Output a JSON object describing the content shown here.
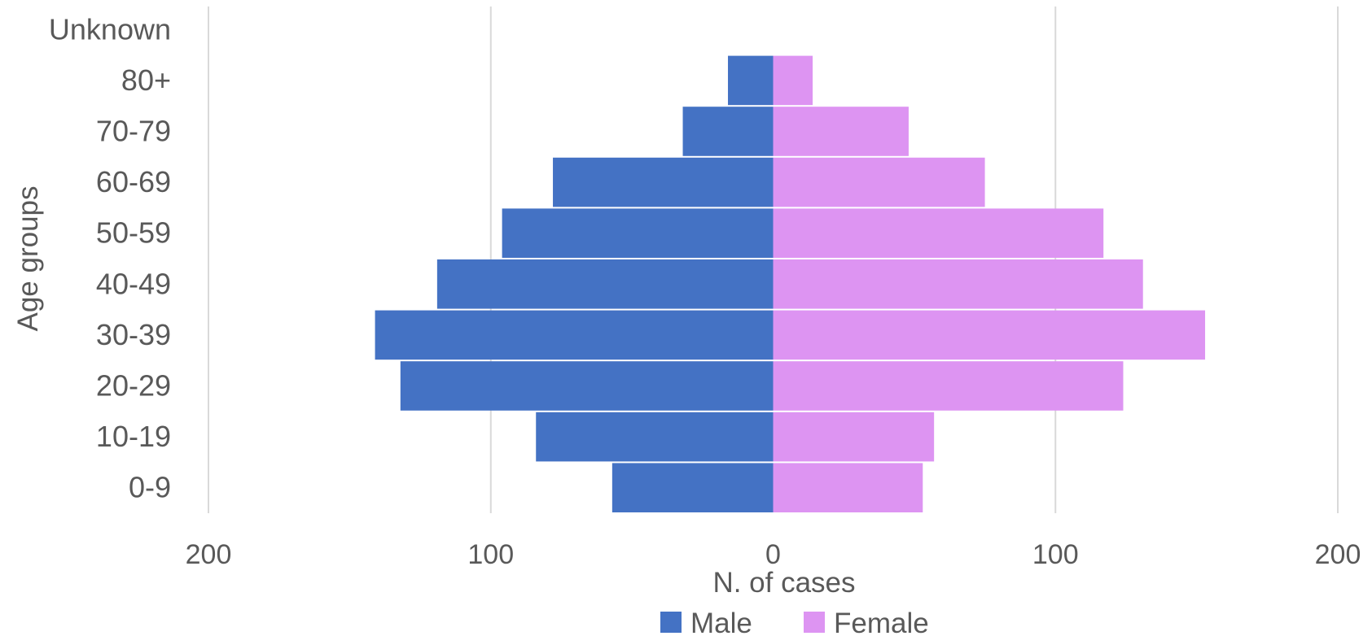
{
  "chart_data": {
    "type": "bar",
    "orientation": "horizontal-population-pyramid",
    "categories": [
      "0-9",
      "10-19",
      "20-29",
      "30-39",
      "40-49",
      "50-59",
      "60-69",
      "70-79",
      "80+",
      "Unknown"
    ],
    "series": [
      {
        "name": "Male",
        "values": [
          57,
          84,
          132,
          141,
          119,
          96,
          78,
          32,
          16,
          0
        ],
        "color": "#4472C4",
        "side": "left"
      },
      {
        "name": "Female",
        "values": [
          53,
          57,
          124,
          153,
          131,
          117,
          75,
          48,
          14,
          0
        ],
        "color": "#DD94F2",
        "side": "right"
      }
    ],
    "xlabel": "N. of cases",
    "ylabel": "Age groups",
    "xlim": [
      -200,
      200
    ],
    "xticks": [
      {
        "value": -200,
        "label": "200"
      },
      {
        "value": -100,
        "label": "100"
      },
      {
        "value": 0,
        "label": "0"
      },
      {
        "value": 100,
        "label": "100"
      },
      {
        "value": 200,
        "label": "200"
      }
    ],
    "grid": "vertical",
    "legend": "bottom"
  }
}
